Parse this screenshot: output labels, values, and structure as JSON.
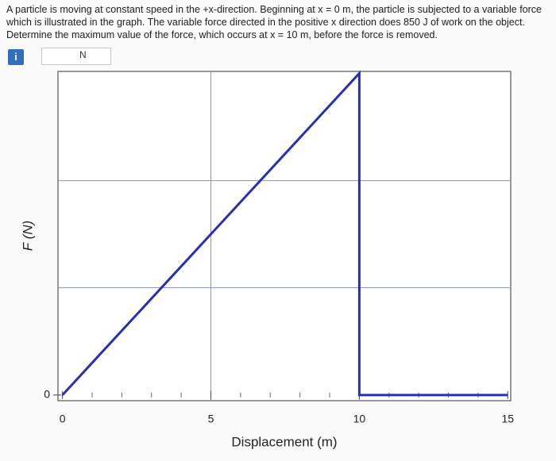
{
  "question": "A particle is moving at constant speed in the +x-direction. Beginning at x = 0 m, the particle is subjected to a variable force which is illustrated in the graph. The variable force directed in the positive x direction does 850 J of work on the object. Determine the maximum value of the force, which occurs at x = 10 m, before the force is removed.",
  "info_icon": "i",
  "answer_unit": "N",
  "chart_data": {
    "type": "line",
    "xlabel": "Displacement (m)",
    "ylabel": "F (N)",
    "x": [
      0,
      10,
      10,
      15
    ],
    "values": [
      0,
      170,
      0,
      0
    ],
    "color": "#2a2fb0",
    "xlim": [
      -0.15,
      15.1
    ],
    "ylim": [
      -3,
      171
    ],
    "xticks": [
      0,
      5,
      10,
      15
    ],
    "xminorticks": [
      1,
      2,
      3,
      4,
      6,
      7,
      8,
      9,
      11,
      12,
      13,
      14
    ],
    "yticks": [
      0
    ],
    "ygrid": [
      56.7,
      113.3
    ],
    "xgrid": [
      5,
      10
    ],
    "grid": true
  }
}
